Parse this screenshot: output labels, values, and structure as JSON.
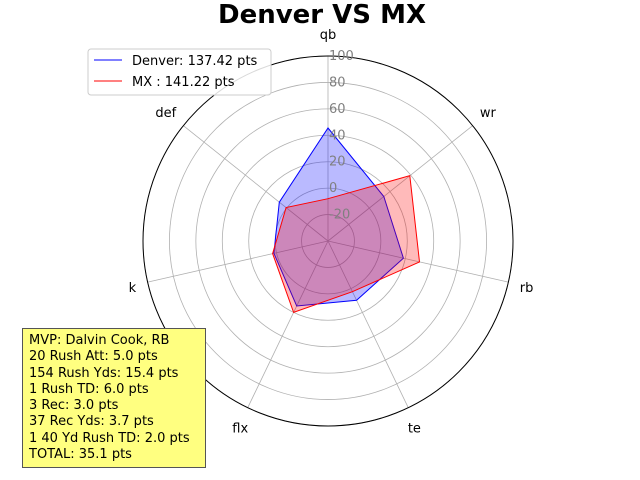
{
  "chart_data": {
    "type": "radar",
    "title": "Denver VS MX",
    "categories": [
      "qb",
      "wr",
      "rb",
      "te",
      "flx",
      "k",
      "def"
    ],
    "rlim": [
      -40,
      100
    ],
    "rticks": [
      -20,
      0,
      20,
      40,
      60,
      80,
      100
    ],
    "grid": true,
    "legend_position": "top-left",
    "series": [
      {
        "name": "Denver: 137.42 pts",
        "color": "#0000ff",
        "fill": "#0000ff",
        "values": [
          45.5,
          14.0,
          18.5,
          9.8,
          14.6,
          2.0,
          7.1
        ]
      },
      {
        "name": "MX : 141.22 pts",
        "color": "#ff0000",
        "fill": "#ff0000",
        "values": [
          -8.0,
          39.2,
          31.0,
          2.6,
          20.0,
          3.0,
          0.6
        ]
      }
    ]
  },
  "mvp_box": {
    "lines": [
      "MVP: Dalvin Cook, RB",
      "20 Rush Att: 5.0 pts",
      "154 Rush Yds: 15.4 pts",
      "1 Rush TD: 6.0 pts",
      "3 Rec: 3.0 pts",
      "37 Rec Yds: 3.7 pts",
      "1 40 Yd Rush TD: 2.0 pts",
      "TOTAL: 35.1 pts"
    ]
  }
}
